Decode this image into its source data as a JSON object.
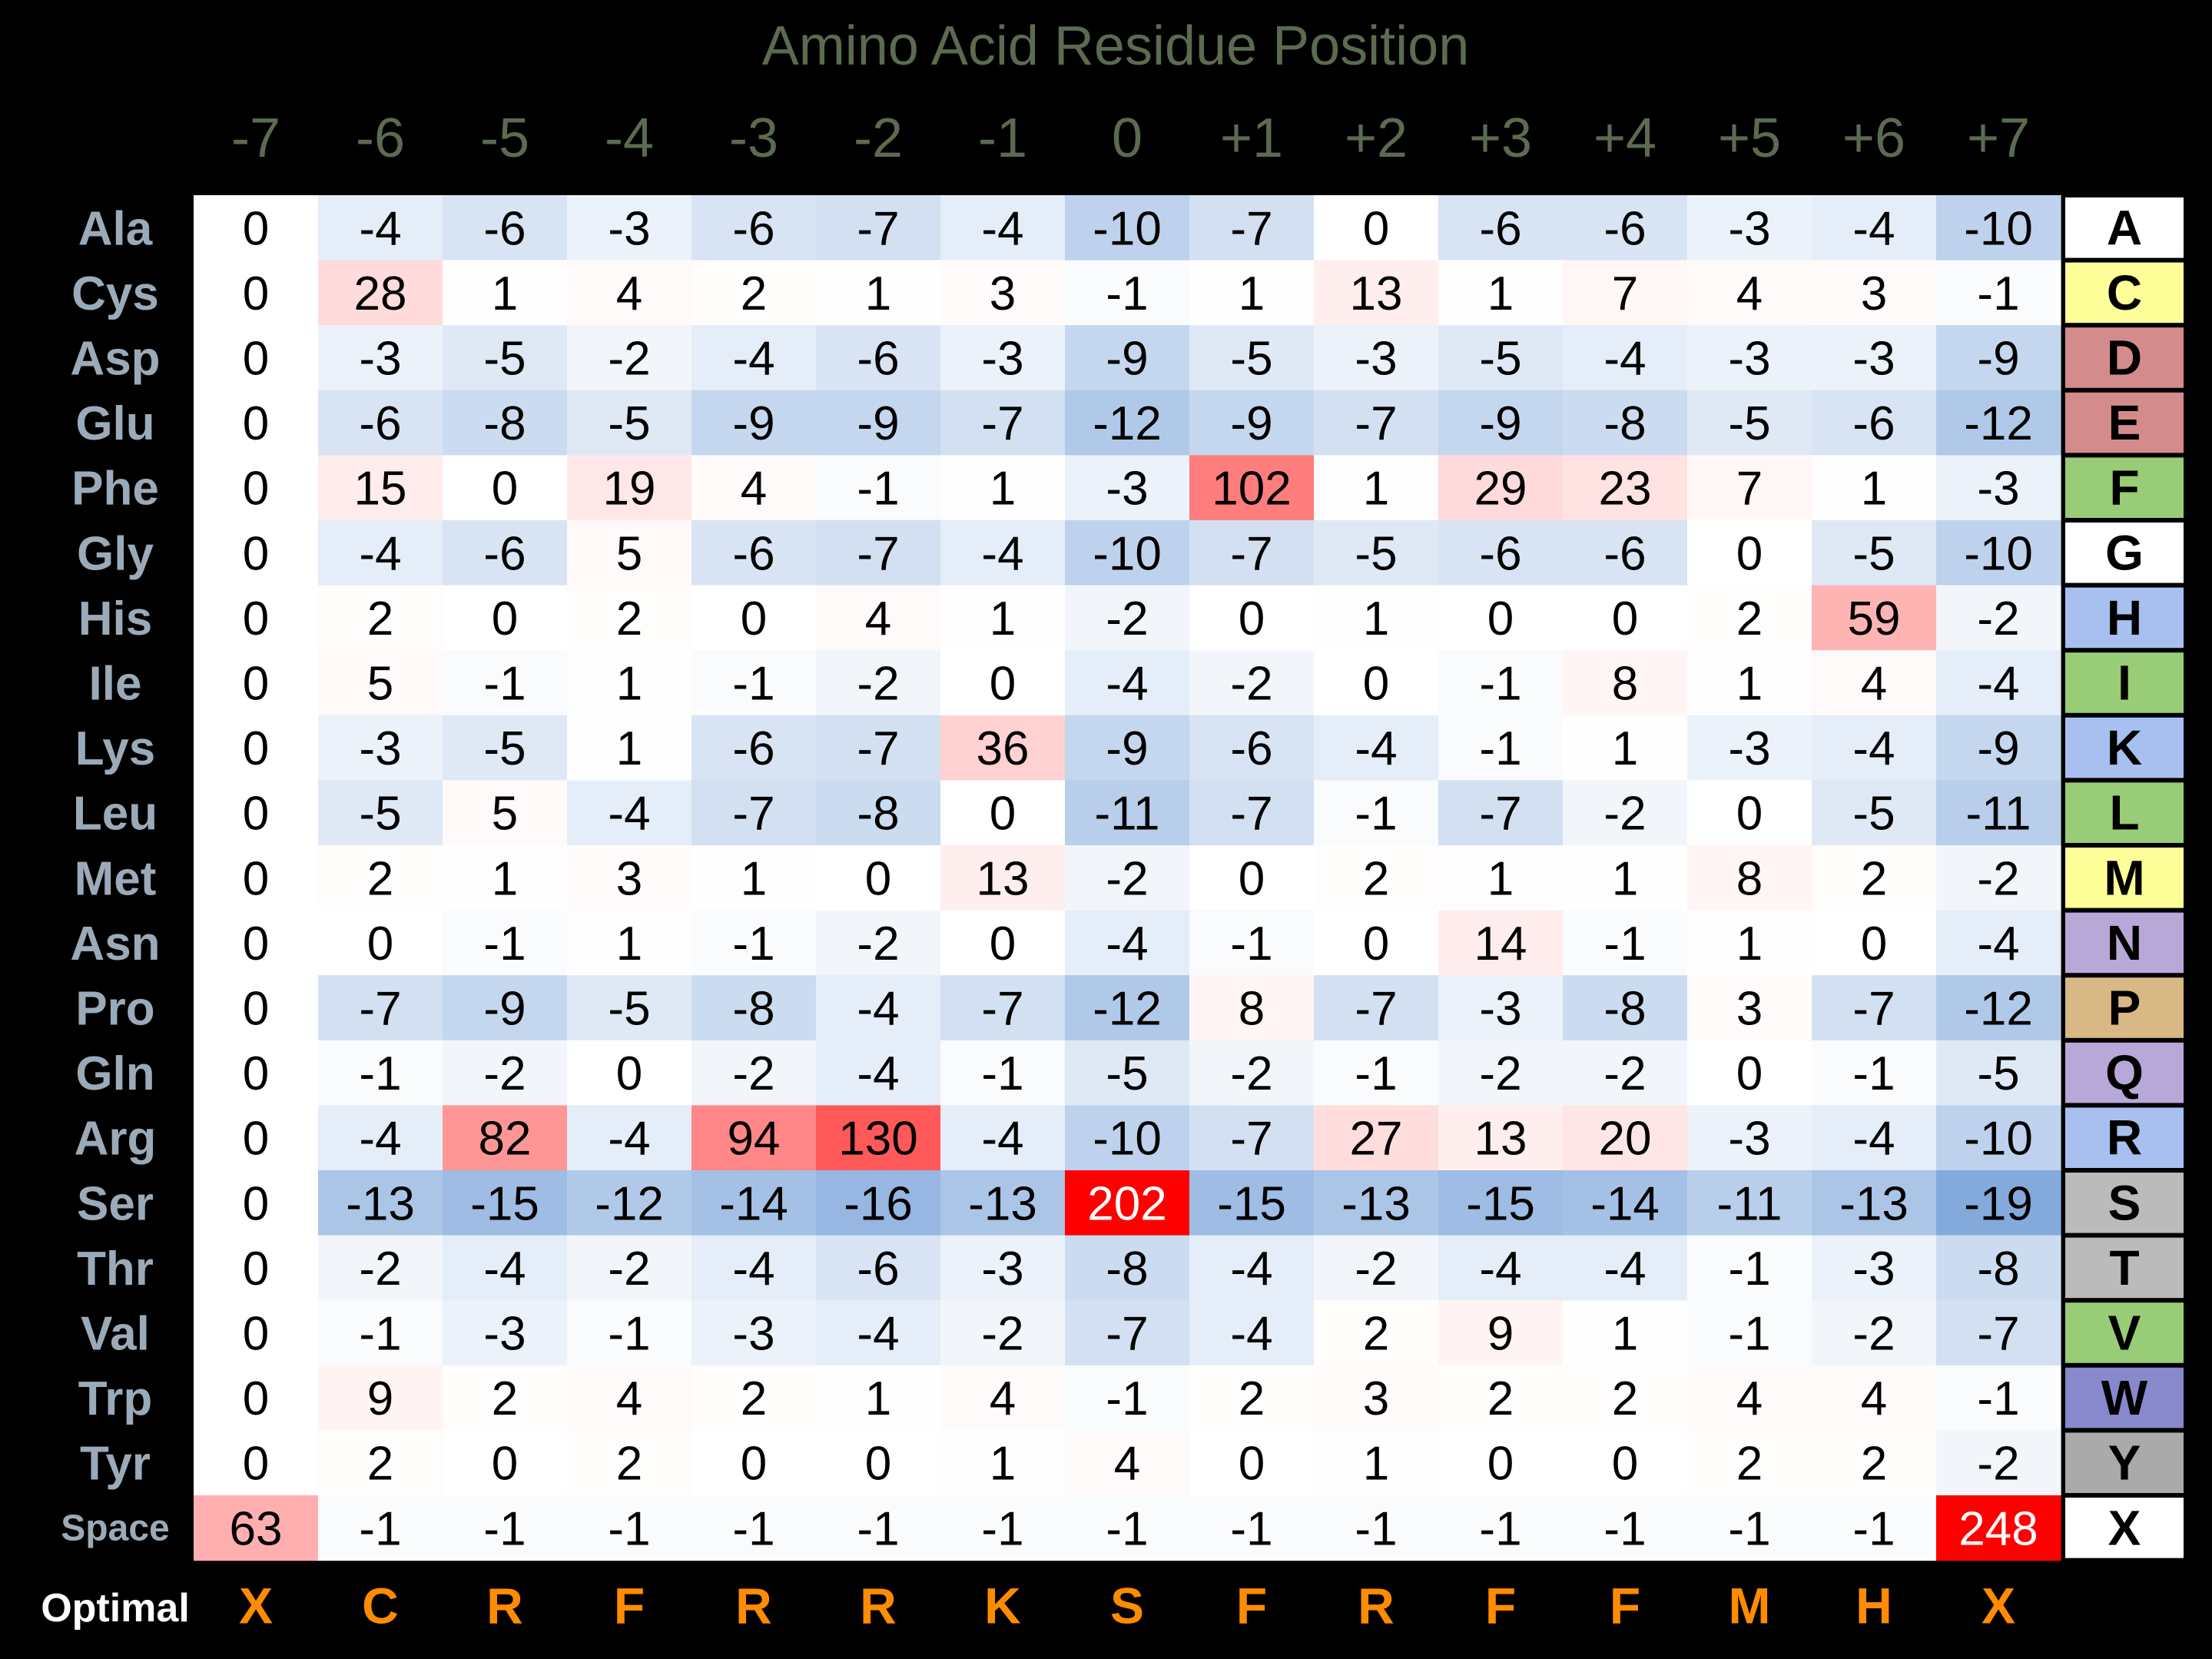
{
  "chart_data": {
    "type": "heatmap",
    "title": "Amino Acid Residue Position",
    "positions": [
      "-7",
      "-6",
      "-5",
      "-4",
      "-3",
      "-2",
      "-1",
      "0",
      "+1",
      "+2",
      "+3",
      "+4",
      "+5",
      "+6",
      "+7"
    ],
    "rows": [
      {
        "name": "Ala",
        "code": "A",
        "code_color": "#ffffff",
        "values": [
          0,
          -4,
          -6,
          -3,
          -6,
          -7,
          -4,
          -10,
          -7,
          0,
          -6,
          -6,
          -3,
          -4,
          -10
        ]
      },
      {
        "name": "Cys",
        "code": "C",
        "code_color": "#ffff99",
        "values": [
          0,
          28,
          1,
          4,
          2,
          1,
          3,
          -1,
          1,
          13,
          1,
          7,
          4,
          3,
          -1
        ]
      },
      {
        "name": "Asp",
        "code": "D",
        "code_color": "#d48b8b",
        "values": [
          0,
          -3,
          -5,
          -2,
          -4,
          -6,
          -3,
          -9,
          -5,
          -3,
          -5,
          -4,
          -3,
          -3,
          -9
        ]
      },
      {
        "name": "Glu",
        "code": "E",
        "code_color": "#d48b8b",
        "values": [
          0,
          -6,
          -8,
          -5,
          -9,
          -9,
          -7,
          -12,
          -9,
          -7,
          -9,
          -8,
          -5,
          -6,
          -12
        ]
      },
      {
        "name": "Phe",
        "code": "F",
        "code_color": "#99cc77",
        "values": [
          0,
          15,
          0,
          19,
          4,
          -1,
          1,
          -3,
          102,
          1,
          29,
          23,
          7,
          1,
          -3
        ]
      },
      {
        "name": "Gly",
        "code": "G",
        "code_color": "#ffffff",
        "values": [
          0,
          -4,
          -6,
          5,
          -6,
          -7,
          -4,
          -10,
          -7,
          -5,
          -6,
          -6,
          0,
          -5,
          -10
        ]
      },
      {
        "name": "His",
        "code": "H",
        "code_color": "#a8c0f0",
        "values": [
          0,
          2,
          0,
          2,
          0,
          4,
          1,
          -2,
          0,
          1,
          0,
          0,
          2,
          59,
          -2
        ]
      },
      {
        "name": "Ile",
        "code": "I",
        "code_color": "#99cc77",
        "values": [
          0,
          5,
          -1,
          1,
          -1,
          -2,
          0,
          -4,
          -2,
          0,
          -1,
          8,
          1,
          4,
          -4
        ]
      },
      {
        "name": "Lys",
        "code": "K",
        "code_color": "#a8c0f0",
        "values": [
          0,
          -3,
          -5,
          1,
          -6,
          -7,
          36,
          -9,
          -6,
          -4,
          -1,
          1,
          -3,
          -4,
          -9
        ]
      },
      {
        "name": "Leu",
        "code": "L",
        "code_color": "#99cc77",
        "values": [
          0,
          -5,
          5,
          -4,
          -7,
          -8,
          0,
          -11,
          -7,
          -1,
          -7,
          -2,
          0,
          -5,
          -11
        ]
      },
      {
        "name": "Met",
        "code": "M",
        "code_color": "#ffff99",
        "values": [
          0,
          2,
          1,
          3,
          1,
          0,
          13,
          -2,
          0,
          2,
          1,
          1,
          8,
          2,
          -2
        ]
      },
      {
        "name": "Asn",
        "code": "N",
        "code_color": "#b8a8d8",
        "values": [
          0,
          0,
          -1,
          1,
          -1,
          -2,
          0,
          -4,
          -1,
          0,
          14,
          -1,
          1,
          0,
          -4
        ]
      },
      {
        "name": "Pro",
        "code": "P",
        "code_color": "#d8b884",
        "values": [
          0,
          -7,
          -9,
          -5,
          -8,
          -4,
          -7,
          -12,
          8,
          -7,
          -3,
          -8,
          3,
          -7,
          -12
        ]
      },
      {
        "name": "Gln",
        "code": "Q",
        "code_color": "#b8a8d8",
        "values": [
          0,
          -1,
          -2,
          0,
          -2,
          -4,
          -1,
          -5,
          -2,
          -1,
          -2,
          -2,
          0,
          -1,
          -5
        ]
      },
      {
        "name": "Arg",
        "code": "R",
        "code_color": "#a8c0f0",
        "values": [
          0,
          -4,
          82,
          -4,
          94,
          130,
          -4,
          -10,
          -7,
          27,
          13,
          20,
          -3,
          -4,
          -10
        ]
      },
      {
        "name": "Ser",
        "code": "S",
        "code_color": "#bbbbbb",
        "values": [
          0,
          -13,
          -15,
          -12,
          -14,
          -16,
          -13,
          202,
          -15,
          -13,
          -15,
          -14,
          -11,
          -13,
          -19
        ]
      },
      {
        "name": "Thr",
        "code": "T",
        "code_color": "#bbbbbb",
        "values": [
          0,
          -2,
          -4,
          -2,
          -4,
          -6,
          -3,
          -8,
          -4,
          -2,
          -4,
          -4,
          -1,
          -3,
          -8
        ]
      },
      {
        "name": "Val",
        "code": "V",
        "code_color": "#99cc77",
        "values": [
          0,
          -1,
          -3,
          -1,
          -3,
          -4,
          -2,
          -7,
          -4,
          2,
          9,
          1,
          -1,
          -2,
          -7
        ]
      },
      {
        "name": "Trp",
        "code": "W",
        "code_color": "#8888cc",
        "values": [
          0,
          9,
          2,
          4,
          2,
          1,
          4,
          -1,
          2,
          3,
          2,
          2,
          4,
          4,
          -1
        ]
      },
      {
        "name": "Tyr",
        "code": "Y",
        "code_color": "#aaaaaa",
        "values": [
          0,
          2,
          0,
          2,
          0,
          0,
          1,
          4,
          0,
          1,
          0,
          0,
          2,
          2,
          -2
        ]
      },
      {
        "name": "Space",
        "code": "X",
        "code_color": "#ffffff",
        "values": [
          63,
          -1,
          -1,
          -1,
          -1,
          -1,
          -1,
          -1,
          -1,
          -1,
          -1,
          -1,
          -1,
          -1,
          248
        ]
      }
    ],
    "optimal_label": "Optimal",
    "optimal": [
      "X",
      "C",
      "R",
      "F",
      "R",
      "R",
      "K",
      "S",
      "F",
      "R",
      "F",
      "F",
      "M",
      "H",
      "X"
    ],
    "colors": {
      "title": "#5c6b50",
      "row_label": "#9aaab8",
      "optimal_label": "#ffffff",
      "optimal_letters": "#ff8c00",
      "positive": "#ff0000",
      "negative": "#3c78c8"
    }
  }
}
